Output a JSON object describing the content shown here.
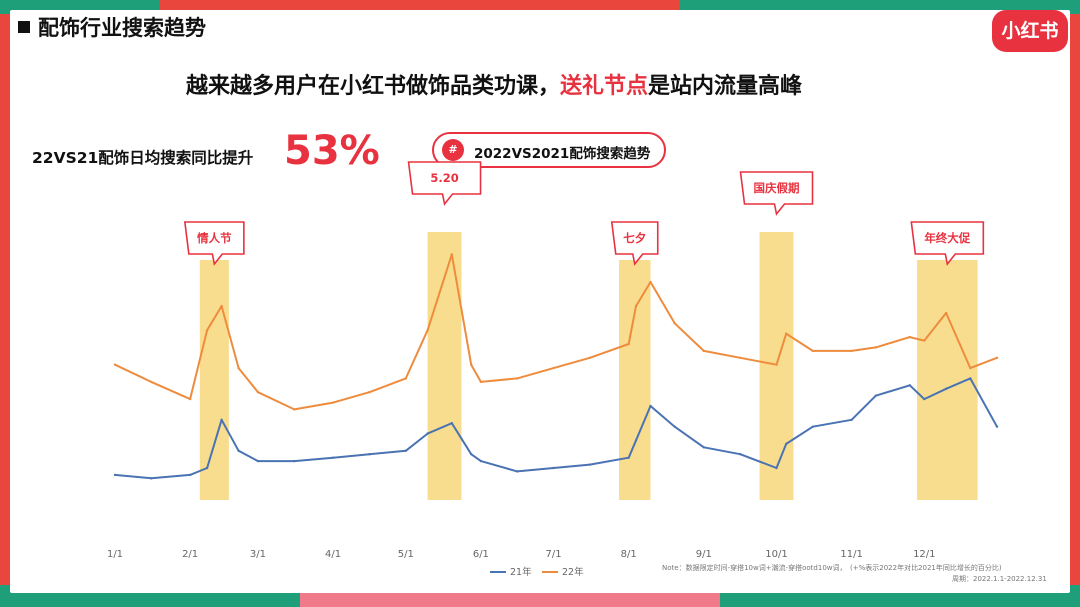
{
  "section_title": "配饰行业搜索趋势",
  "logo_text": "小红书",
  "headline": {
    "part1": "越来越多用户在小红书做饰品类功课，",
    "highlight": "送礼节点",
    "part2": "是站内流量高峰"
  },
  "stat": {
    "label": "22VS21配饰日均搜索同比提升",
    "value": "53%"
  },
  "legend_pill": {
    "icon": "#",
    "label": "2022VS2021配饰搜索趋势"
  },
  "note": "Note：数据限定时间-穿搭10w词+潮流-穿搭ootd10w词，　(+%表示2022年对比2021年同比增长的百分比)",
  "period": "周期：2022.1.1-2022.12.31",
  "colors": {
    "series_21": "#4a73b3",
    "series_22": "#ee8c3e",
    "highlight": "#f8d77a",
    "accent": "#e8323f"
  },
  "chart_data": {
    "type": "line",
    "title": "2022VS2021配饰搜索趋势",
    "x_ticks": [
      "1/1",
      "2/1",
      "3/1",
      "4/1",
      "5/1",
      "6/1",
      "7/1",
      "8/1",
      "9/1",
      "10/1",
      "11/1",
      "12/1"
    ],
    "x": [
      "1/1",
      "1/16",
      "2/1",
      "2/8",
      "2/14",
      "2/21",
      "3/1",
      "3/16",
      "4/1",
      "4/16",
      "5/1",
      "5/10",
      "5/20",
      "5/28",
      "6/1",
      "6/16",
      "7/1",
      "7/16",
      "8/1",
      "8/4",
      "8/10",
      "8/20",
      "9/1",
      "9/16",
      "10/1",
      "10/5",
      "10/16",
      "11/1",
      "11/11",
      "11/25",
      "12/1",
      "12/10",
      "12/20",
      "12/31"
    ],
    "series": [
      {
        "name": "21年",
        "values": [
          26,
          25,
          26,
          28,
          42,
          33,
          30,
          30,
          31,
          32,
          33,
          38,
          41,
          32,
          30,
          27,
          28,
          29,
          31,
          36,
          46,
          40,
          34,
          32,
          28,
          35,
          40,
          42,
          49,
          52,
          48,
          51,
          54,
          40
        ]
      },
      {
        "name": "22年",
        "values": [
          58,
          53,
          48,
          68,
          75,
          57,
          50,
          45,
          47,
          50,
          54,
          68,
          90,
          58,
          53,
          54,
          57,
          60,
          64,
          75,
          82,
          70,
          62,
          60,
          58,
          67,
          62,
          62,
          63,
          66,
          65,
          73,
          57,
          60
        ]
      }
    ],
    "annotations": [
      {
        "label": "情人节",
        "range": [
          "2/5",
          "2/17"
        ]
      },
      {
        "label": "5.20",
        "range": [
          "5/10",
          "5/24"
        ]
      },
      {
        "label": "七夕",
        "range": [
          "7/28",
          "8/10"
        ]
      },
      {
        "label": "国庆假期",
        "range": [
          "9/24",
          "10/8"
        ]
      },
      {
        "label": "年终大促",
        "range": [
          "11/28",
          "12/23"
        ]
      }
    ],
    "legend": "bottom",
    "grid": false
  }
}
